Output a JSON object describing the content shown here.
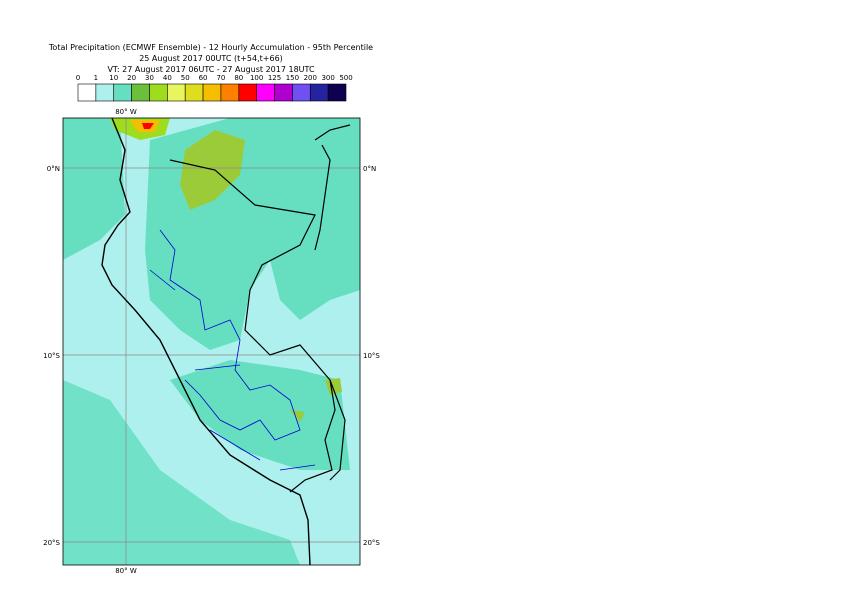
{
  "header": {
    "lines": [
      "Total Precipitation (ECMWF Ensemble) - 12 Hourly Accumulation - 95th Percentile",
      "25 August 2017 00UTC (t+54,t+66)",
      "VT: 27 August 2017 06UTC - 27 August 2017 18UTC"
    ]
  },
  "legend": {
    "labels": [
      "0",
      "1",
      "10",
      "20",
      "30",
      "40",
      "50",
      "60",
      "70",
      "80",
      "100",
      "125",
      "150",
      "200",
      "300",
      "500"
    ],
    "colors": [
      "#ffffff",
      "#aef0ee",
      "#66dfc0",
      "#6cbf3a",
      "#9edd1e",
      "#e8f55c",
      "#dede1e",
      "#f5be00",
      "#ff8000",
      "#ff0000",
      "#ff00ff",
      "#b000d0",
      "#7050f0",
      "#2424a0",
      "#100050"
    ]
  },
  "map": {
    "lon_label": "80° W",
    "lat_labels": [
      "0°N",
      "10°S",
      "20°S"
    ]
  }
}
